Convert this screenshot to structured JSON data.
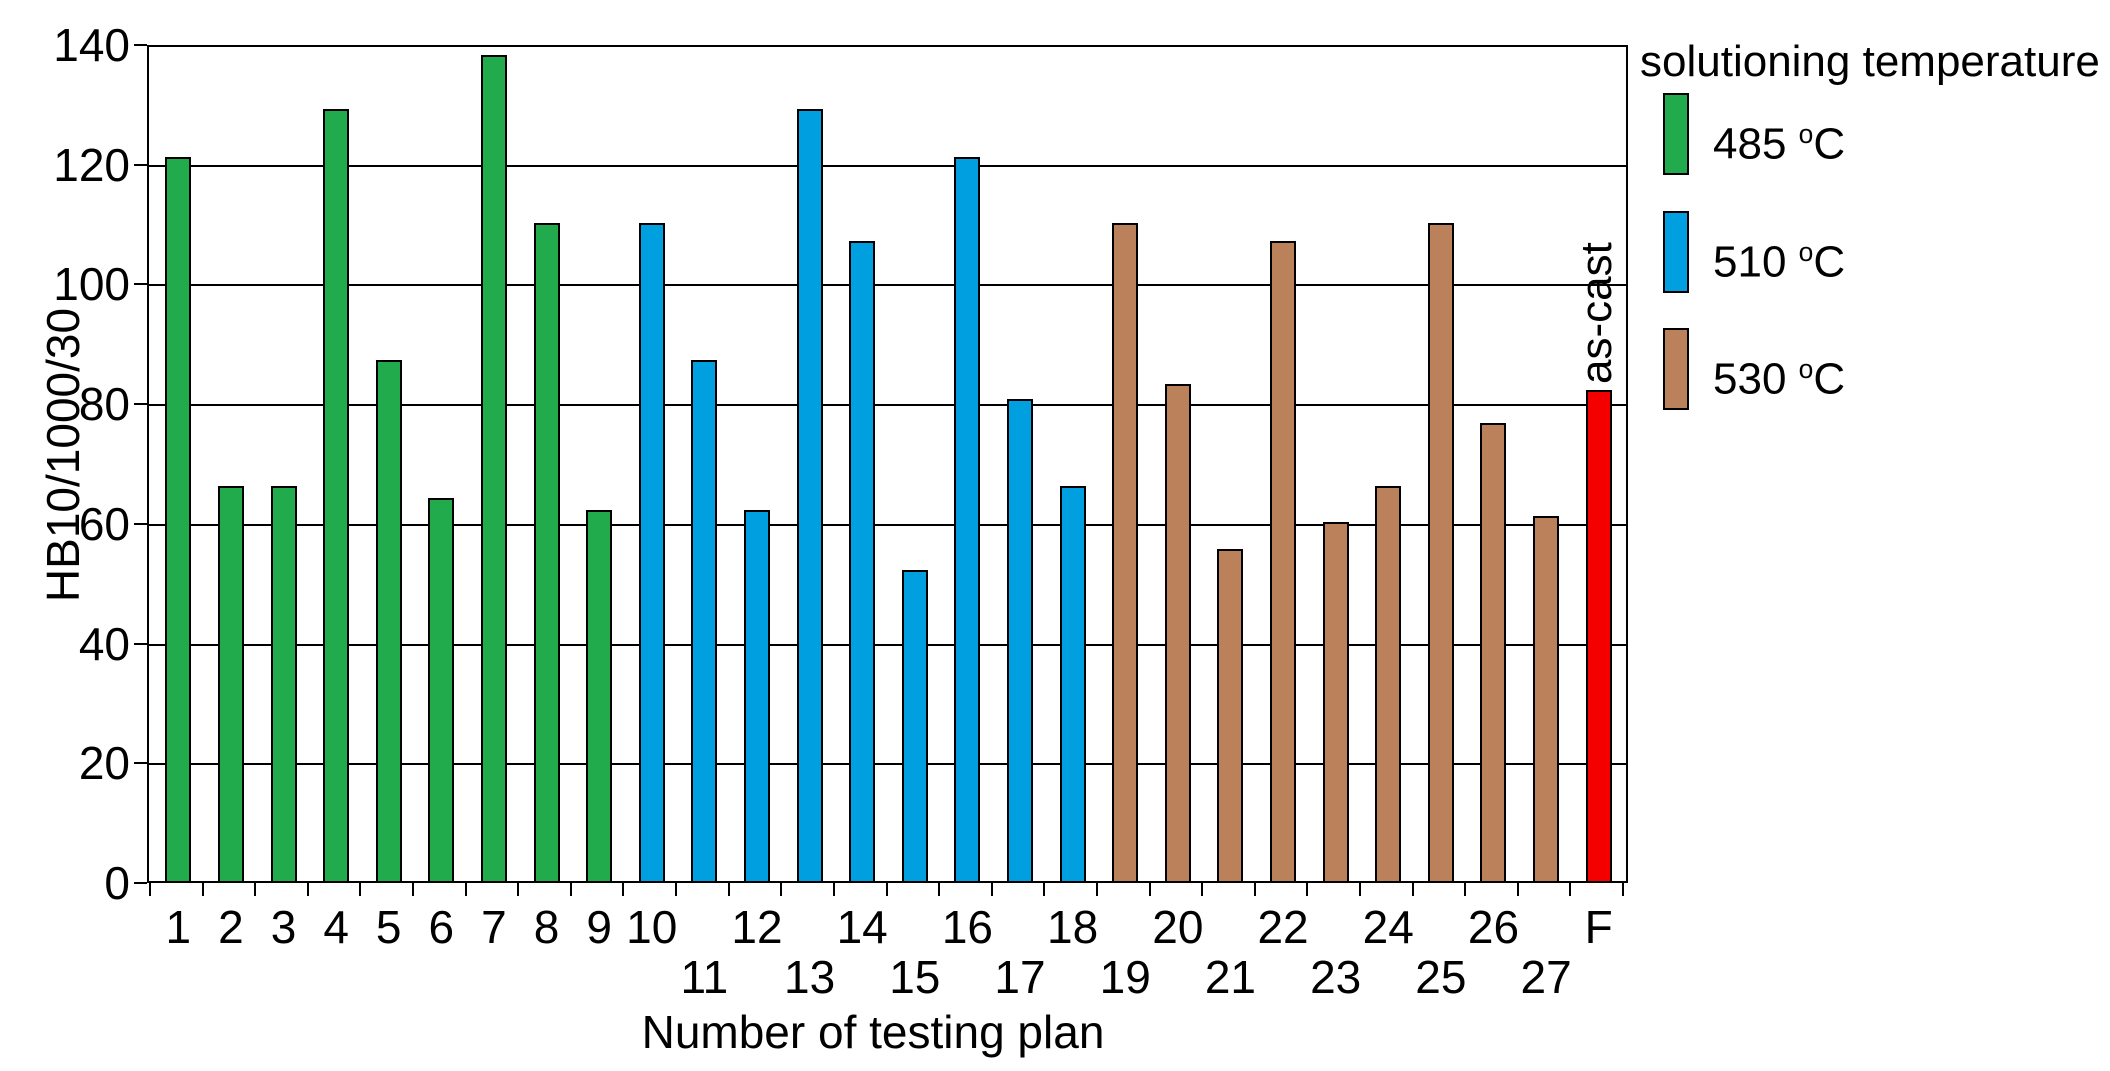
{
  "legend": {
    "title": "solutioning temperature",
    "items": [
      {
        "label": "485 °C",
        "group": "485",
        "color": "#22ab4d"
      },
      {
        "label": "510 °C",
        "group": "510",
        "color": "#009fe0"
      },
      {
        "label": "530 °C",
        "group": "530",
        "color": "#ba815a"
      }
    ]
  },
  "annotation": {
    "text": "as-cast"
  },
  "chart_data": {
    "type": "bar",
    "title": "",
    "xlabel": "Number of testing plan",
    "ylabel": "HB10/1000/30",
    "ylim": [
      0,
      140
    ],
    "ytick_step": 20,
    "yticks": [
      0,
      20,
      40,
      60,
      80,
      100,
      120,
      140
    ],
    "grid": "horizontal",
    "legend_position": "right",
    "groups": {
      "485": "#22ab4d",
      "510": "#009fe0",
      "530": "#ba815a",
      "as-cast": "#f50000"
    },
    "bars": [
      {
        "label": "1",
        "value": 121,
        "group": "485"
      },
      {
        "label": "2",
        "value": 66,
        "group": "485"
      },
      {
        "label": "3",
        "value": 66,
        "group": "485"
      },
      {
        "label": "4",
        "value": 129,
        "group": "485"
      },
      {
        "label": "5",
        "value": 87,
        "group": "485"
      },
      {
        "label": "6",
        "value": 64,
        "group": "485"
      },
      {
        "label": "7",
        "value": 138,
        "group": "485"
      },
      {
        "label": "8",
        "value": 110,
        "group": "485"
      },
      {
        "label": "9",
        "value": 62,
        "group": "485"
      },
      {
        "label": "10",
        "value": 110,
        "group": "510"
      },
      {
        "label": "11",
        "value": 87,
        "group": "510"
      },
      {
        "label": "12",
        "value": 62,
        "group": "510"
      },
      {
        "label": "13",
        "value": 129,
        "group": "510"
      },
      {
        "label": "14",
        "value": 107,
        "group": "510"
      },
      {
        "label": "15",
        "value": 52,
        "group": "510"
      },
      {
        "label": "16",
        "value": 121,
        "group": "510"
      },
      {
        "label": "17",
        "value": 80.5,
        "group": "510"
      },
      {
        "label": "18",
        "value": 66,
        "group": "510"
      },
      {
        "label": "19",
        "value": 110,
        "group": "530"
      },
      {
        "label": "20",
        "value": 83,
        "group": "530"
      },
      {
        "label": "21",
        "value": 55.5,
        "group": "530"
      },
      {
        "label": "22",
        "value": 107,
        "group": "530"
      },
      {
        "label": "23",
        "value": 60,
        "group": "530"
      },
      {
        "label": "24",
        "value": 66,
        "group": "530"
      },
      {
        "label": "25",
        "value": 110,
        "group": "530"
      },
      {
        "label": "26",
        "value": 76.5,
        "group": "530"
      },
      {
        "label": "27",
        "value": 61,
        "group": "530"
      },
      {
        "label": "F",
        "value": 82,
        "group": "as-cast"
      }
    ]
  }
}
